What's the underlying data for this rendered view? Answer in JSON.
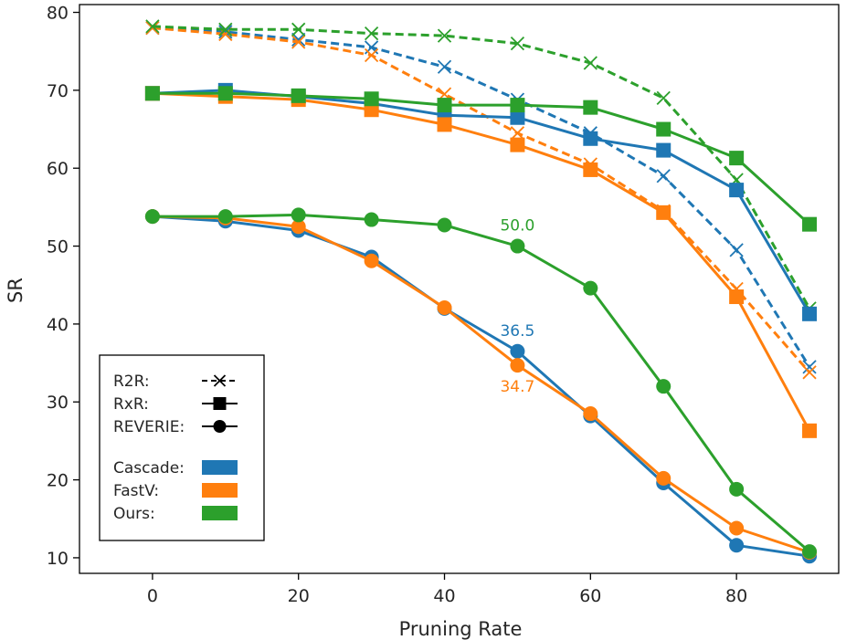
{
  "chart_data": {
    "type": "line",
    "xlabel": "Pruning Rate",
    "ylabel": "SR",
    "xlim": [
      -10,
      94
    ],
    "ylim": [
      8,
      81
    ],
    "xticks": [
      0,
      20,
      40,
      60,
      80
    ],
    "yticks": [
      10,
      20,
      30,
      40,
      50,
      60,
      70,
      80
    ],
    "grid": false,
    "legend_position": "lower-left",
    "x": [
      0,
      10,
      20,
      30,
      40,
      50,
      60,
      70,
      80,
      90
    ],
    "colors": {
      "Cascade": "#1f77b4",
      "FastV": "#ff7f0e",
      "Ours": "#2ca02c"
    },
    "series": [
      {
        "dataset": "R2R",
        "method": "Cascade",
        "values": [
          78.0,
          77.5,
          76.5,
          75.5,
          73.0,
          68.8,
          64.5,
          59.0,
          49.5,
          34.5
        ]
      },
      {
        "dataset": "R2R",
        "method": "FastV",
        "values": [
          78.0,
          77.2,
          76.2,
          74.5,
          69.5,
          64.5,
          60.5,
          54.5,
          44.5,
          33.8
        ]
      },
      {
        "dataset": "R2R",
        "method": "Ours",
        "values": [
          78.2,
          77.8,
          77.8,
          77.3,
          77.0,
          76.0,
          73.5,
          69.0,
          58.5,
          42.0
        ]
      },
      {
        "dataset": "RxR",
        "method": "Cascade",
        "values": [
          69.6,
          70.0,
          69.2,
          68.3,
          66.8,
          66.5,
          63.8,
          62.3,
          57.2,
          41.3
        ]
      },
      {
        "dataset": "RxR",
        "method": "FastV",
        "values": [
          69.6,
          69.2,
          68.8,
          67.5,
          65.6,
          63.0,
          59.8,
          54.3,
          43.5,
          26.3
        ]
      },
      {
        "dataset": "RxR",
        "method": "Ours",
        "values": [
          69.6,
          69.6,
          69.3,
          68.9,
          68.1,
          68.1,
          67.8,
          65.0,
          61.3,
          52.8
        ]
      },
      {
        "dataset": "REVERIE",
        "method": "Cascade",
        "values": [
          53.8,
          53.2,
          52.0,
          48.6,
          42.0,
          36.5,
          28.2,
          19.6,
          11.6,
          10.2
        ]
      },
      {
        "dataset": "REVERIE",
        "method": "FastV",
        "values": [
          53.8,
          53.6,
          52.5,
          48.1,
          42.1,
          34.7,
          28.5,
          20.2,
          13.8,
          10.7
        ]
      },
      {
        "dataset": "REVERIE",
        "method": "Ours",
        "values": [
          53.8,
          53.8,
          54.0,
          53.4,
          52.7,
          50.0,
          44.6,
          32.0,
          18.8,
          10.8
        ]
      }
    ],
    "annotations": [
      {
        "text": "50.0",
        "x": 50,
        "y": 50.0,
        "method": "Ours"
      },
      {
        "text": "36.5",
        "x": 50,
        "y": 36.5,
        "method": "Cascade"
      },
      {
        "text": "34.7",
        "x": 50,
        "y": 34.7,
        "method": "FastV"
      }
    ],
    "legend": {
      "datasets": [
        {
          "label": "R2R:",
          "marker": "x",
          "dashed": true
        },
        {
          "label": "RxR:",
          "marker": "square",
          "dashed": false
        },
        {
          "label": "REVERIE:",
          "marker": "circle",
          "dashed": false
        }
      ],
      "methods": [
        {
          "label": "Cascade:",
          "method": "Cascade"
        },
        {
          "label": "FastV:",
          "method": "FastV"
        },
        {
          "label": "Ours:",
          "method": "Ours"
        }
      ]
    }
  }
}
